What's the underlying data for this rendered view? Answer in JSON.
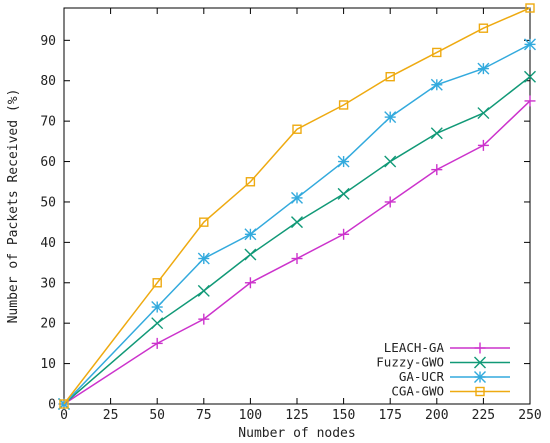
{
  "chart_data": {
    "type": "line",
    "title": "",
    "xlabel": "Number of nodes",
    "ylabel": "Number of Packets Received (%)",
    "x": [
      0,
      50,
      75,
      100,
      125,
      150,
      175,
      200,
      225,
      250
    ],
    "xlim": [
      0,
      250
    ],
    "ylim": [
      0,
      98
    ],
    "xticks": [
      0,
      25,
      50,
      75,
      100,
      125,
      150,
      175,
      200,
      225,
      250
    ],
    "yticks": [
      0,
      10,
      20,
      30,
      40,
      50,
      60,
      70,
      80,
      90
    ],
    "grid": false,
    "legend_position": "bottom-right",
    "series": [
      {
        "name": "LEACH-GA",
        "color": "#cc33cc",
        "marker": "plus",
        "values": [
          0,
          15,
          21,
          30,
          36,
          42,
          50,
          58,
          64,
          75
        ]
      },
      {
        "name": "Fuzzy-GWO",
        "color": "#119977",
        "marker": "x",
        "values": [
          0,
          20,
          28,
          37,
          45,
          52,
          60,
          67,
          72,
          81
        ]
      },
      {
        "name": "GA-UCR",
        "color": "#33aadd",
        "marker": "asterisk",
        "values": [
          0,
          24,
          36,
          42,
          51,
          60,
          71,
          79,
          83,
          89
        ]
      },
      {
        "name": "CGA-GWO",
        "color": "#eeaa11",
        "marker": "square",
        "values": [
          0,
          30,
          45,
          55,
          68,
          74,
          81,
          87,
          93,
          98
        ]
      }
    ]
  }
}
